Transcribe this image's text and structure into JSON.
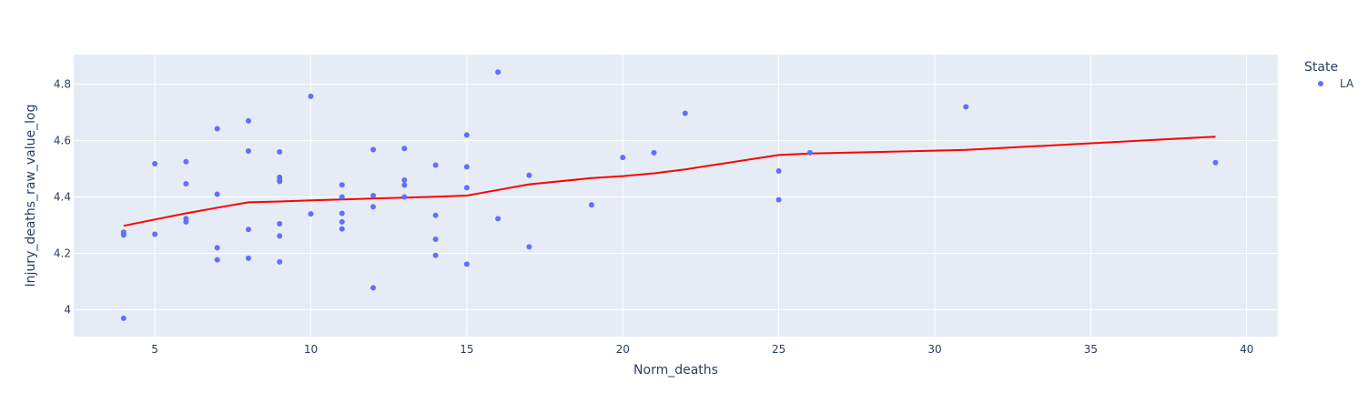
{
  "chart_data": {
    "type": "scatter",
    "xlabel": "Norm_deaths",
    "ylabel": "Injury_deaths_raw_value_log",
    "xlim": [
      2.4,
      41.0
    ],
    "ylim": [
      3.905,
      4.905
    ],
    "xticks": [
      5,
      10,
      15,
      20,
      25,
      30,
      35,
      40
    ],
    "yticks": [
      4,
      4.2,
      4.4,
      4.6,
      4.8
    ],
    "ytick_labels": [
      "4",
      "4.2",
      "4.4",
      "4.6",
      "4.8"
    ],
    "grid": true,
    "legend_placement": "top-right",
    "legend_title": "State",
    "colors": {
      "points": "#636efa",
      "trend": "#ff0000",
      "plot_bg": "#e5ecf6",
      "grid": "#ffffff",
      "text": "#2a3f5f"
    },
    "series": [
      {
        "name": "LA",
        "kind": "markers",
        "points": [
          [
            4,
            3.97
          ],
          [
            4,
            4.27
          ],
          [
            4,
            4.265
          ],
          [
            4,
            4.275
          ],
          [
            5,
            4.518
          ],
          [
            5,
            4.268
          ],
          [
            6,
            4.525
          ],
          [
            6,
            4.447
          ],
          [
            6,
            4.323
          ],
          [
            6,
            4.312
          ],
          [
            7,
            4.642
          ],
          [
            7,
            4.41
          ],
          [
            7,
            4.22
          ],
          [
            7,
            4.177
          ],
          [
            8,
            4.67
          ],
          [
            8,
            4.563
          ],
          [
            8,
            4.285
          ],
          [
            8,
            4.183
          ],
          [
            9,
            4.56
          ],
          [
            9,
            4.47
          ],
          [
            9,
            4.46
          ],
          [
            9,
            4.455
          ],
          [
            9,
            4.305
          ],
          [
            9,
            4.262
          ],
          [
            9,
            4.17
          ],
          [
            10,
            4.757
          ],
          [
            10,
            4.34
          ],
          [
            11,
            4.443
          ],
          [
            11,
            4.4
          ],
          [
            11,
            4.342
          ],
          [
            11,
            4.312
          ],
          [
            11,
            4.287
          ],
          [
            12,
            4.568
          ],
          [
            12,
            4.405
          ],
          [
            12,
            4.365
          ],
          [
            12,
            4.078
          ],
          [
            13,
            4.572
          ],
          [
            13,
            4.46
          ],
          [
            13,
            4.442
          ],
          [
            13,
            4.4
          ],
          [
            14,
            4.513
          ],
          [
            14,
            4.335
          ],
          [
            14,
            4.25
          ],
          [
            14,
            4.193
          ],
          [
            15,
            4.62
          ],
          [
            15,
            4.507
          ],
          [
            15,
            4.433
          ],
          [
            15,
            4.162
          ],
          [
            16,
            4.843
          ],
          [
            16,
            4.323
          ],
          [
            17,
            4.477
          ],
          [
            17,
            4.223
          ],
          [
            19,
            4.372
          ],
          [
            20,
            4.54
          ],
          [
            21,
            4.557
          ],
          [
            22,
            4.697
          ],
          [
            25,
            4.492
          ],
          [
            25,
            4.39
          ],
          [
            26,
            4.557
          ],
          [
            31,
            4.72
          ],
          [
            39,
            4.522
          ]
        ]
      },
      {
        "kind": "trend-line",
        "x": [
          4,
          5,
          6,
          7,
          8,
          9,
          10,
          11,
          12,
          13,
          14,
          15,
          16,
          17,
          19,
          20,
          21,
          22,
          25,
          26,
          31,
          39
        ],
        "y": [
          4.298,
          4.32,
          4.342,
          4.362,
          4.381,
          4.384,
          4.388,
          4.391,
          4.395,
          4.398,
          4.401,
          4.405,
          4.425,
          4.445,
          4.467,
          4.474,
          4.484,
          4.498,
          4.549,
          4.554,
          4.567,
          4.614
        ]
      }
    ]
  }
}
